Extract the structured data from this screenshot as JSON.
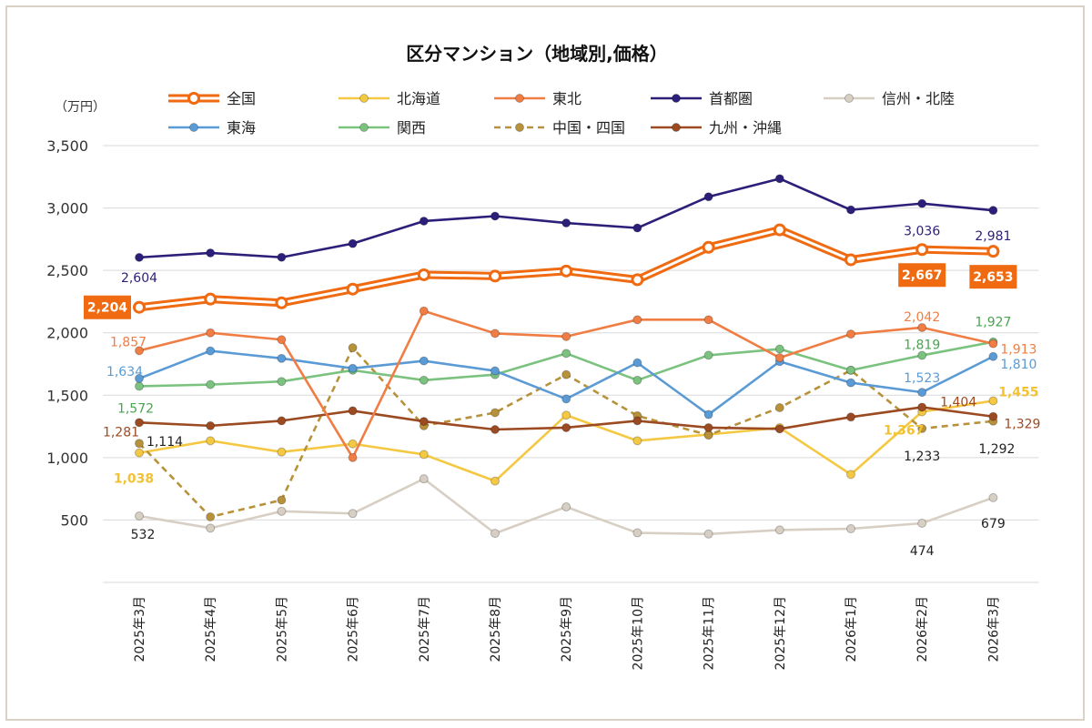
{
  "chart_data": {
    "type": "line",
    "title": "区分マンション（地域別,価格）",
    "unit_label": "（万円）",
    "x": [
      "2025年3月",
      "2025年4月",
      "2025年5月",
      "2025年6月",
      "2025年7月",
      "2025年8月",
      "2025年9月",
      "2025年10月",
      "2025年11月",
      "2025年12月",
      "2026年1月",
      "2026年2月",
      "2026年3月"
    ],
    "ylim": [
      0,
      3500
    ],
    "yticks": [
      {
        "v": 500,
        "label": "500"
      },
      {
        "v": 1000,
        "label": "1,000"
      },
      {
        "v": 1500,
        "label": "1,500"
      },
      {
        "v": 2000,
        "label": "2,000"
      },
      {
        "v": 2500,
        "label": "2,500"
      },
      {
        "v": 3000,
        "label": "3,000"
      },
      {
        "v": 3500,
        "label": "3,500"
      }
    ],
    "grid": "horizontal",
    "legend_position": "top",
    "series": [
      {
        "name": "信州・北陸",
        "color": "#d8cfc4",
        "style": "solid",
        "values": [
          532,
          435,
          570,
          552,
          830,
          393,
          605,
          397,
          388,
          420,
          430,
          474,
          679
        ],
        "labels": [
          {
            "i": 0,
            "text": "532",
            "color": "#222222"
          },
          {
            "i": 11,
            "text": "474",
            "color": "#222222"
          },
          {
            "i": 12,
            "text": "679",
            "color": "#222222"
          }
        ]
      },
      {
        "name": "北海道",
        "color": "#f4c842",
        "style": "solid",
        "values": [
          1038,
          1135,
          1045,
          1110,
          1025,
          812,
          1340,
          1135,
          1185,
          1240,
          865,
          1367,
          1455
        ],
        "labels": [
          {
            "i": 0,
            "text": "1,038",
            "color": "#f2c231",
            "bold": true
          },
          {
            "i": 11,
            "text": "1,367",
            "color": "#f2c231",
            "bold": true
          },
          {
            "i": 12,
            "text": "1,455",
            "color": "#f2c231",
            "bold": true
          }
        ]
      },
      {
        "name": "中国・四国",
        "color": "#b8923a",
        "style": "dashed",
        "values": [
          1114,
          525,
          660,
          1880,
          1255,
          1360,
          1665,
          1335,
          1180,
          1400,
          1700,
          1233,
          1292
        ],
        "labels": [
          {
            "i": 0,
            "text": "1,114",
            "color": "#222222"
          },
          {
            "i": 11,
            "text": "1,233",
            "color": "#222222"
          },
          {
            "i": 12,
            "text": "1,292",
            "color": "#222222"
          }
        ]
      },
      {
        "name": "九州・沖縄",
        "color": "#9c4a22",
        "style": "solid",
        "values": [
          1281,
          1255,
          1295,
          1375,
          1290,
          1225,
          1240,
          1295,
          1240,
          1230,
          1325,
          1404,
          1329
        ],
        "labels": [
          {
            "i": 0,
            "text": "1,281",
            "color": "#9c4a22"
          },
          {
            "i": 11,
            "text": "1,404",
            "color": "#9c4a22"
          },
          {
            "i": 12,
            "text": "1,329",
            "color": "#9c4a22"
          }
        ]
      },
      {
        "name": "関西",
        "color": "#7bc27f",
        "style": "solid",
        "values": [
          1572,
          1585,
          1610,
          1700,
          1620,
          1665,
          1835,
          1620,
          1820,
          1870,
          1700,
          1819,
          1927
        ],
        "labels": [
          {
            "i": 0,
            "text": "1,572",
            "color": "#4aa34f"
          },
          {
            "i": 11,
            "text": "1,819",
            "color": "#4aa34f"
          },
          {
            "i": 12,
            "text": "1,927",
            "color": "#4aa34f"
          }
        ]
      },
      {
        "name": "東海",
        "color": "#5b9bd5",
        "style": "solid",
        "values": [
          1634,
          1855,
          1795,
          1715,
          1775,
          1695,
          1470,
          1760,
          1345,
          1770,
          1600,
          1523,
          1810
        ],
        "labels": [
          {
            "i": 0,
            "text": "1,634",
            "color": "#5b9bd5"
          },
          {
            "i": 11,
            "text": "1,523",
            "color": "#5b9bd5"
          },
          {
            "i": 12,
            "text": "1,810",
            "color": "#5b9bd5"
          }
        ]
      },
      {
        "name": "東北",
        "color": "#ef7d44",
        "style": "solid",
        "values": [
          1857,
          2000,
          1945,
          1000,
          2175,
          1995,
          1970,
          2105,
          2105,
          1800,
          1990,
          2042,
          1913
        ],
        "labels": [
          {
            "i": 0,
            "text": "1,857",
            "color": "#ef7d44"
          },
          {
            "i": 11,
            "text": "2,042",
            "color": "#ef7d44"
          },
          {
            "i": 12,
            "text": "1,913",
            "color": "#ef7d44"
          }
        ]
      },
      {
        "name": "全国",
        "color": "#ef6a10",
        "style": "double",
        "values": [
          2204,
          2270,
          2240,
          2350,
          2465,
          2455,
          2495,
          2425,
          2685,
          2825,
          2585,
          2667,
          2653
        ],
        "labels": [
          {
            "i": 0,
            "text": "2,204",
            "boxed": true
          },
          {
            "i": 11,
            "text": "2,667",
            "boxed": true
          },
          {
            "i": 12,
            "text": "2,653",
            "boxed": true
          }
        ]
      },
      {
        "name": "首都圏",
        "color": "#2b1f7a",
        "style": "solid",
        "values": [
          2604,
          2640,
          2605,
          2715,
          2895,
          2935,
          2880,
          2840,
          3090,
          3235,
          2985,
          3036,
          2981
        ],
        "labels": [
          {
            "i": 0,
            "text": "2,604",
            "color": "#2b1f7a"
          },
          {
            "i": 11,
            "text": "3,036",
            "color": "#2b1f7a"
          },
          {
            "i": 12,
            "text": "2,981",
            "color": "#2b1f7a"
          }
        ]
      }
    ],
    "legend_order": [
      "全国",
      "北海道",
      "東北",
      "首都圏",
      "信州・北陸",
      "東海",
      "関西",
      "中国・四国",
      "九州・沖縄"
    ]
  }
}
